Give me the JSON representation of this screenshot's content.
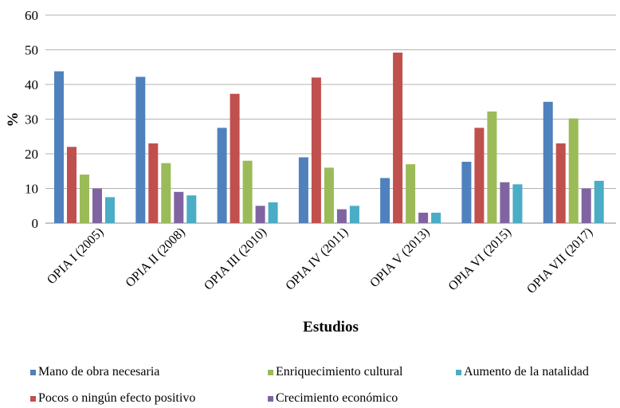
{
  "chart_data": {
    "type": "bar",
    "title": "",
    "xlabel": "Estudios",
    "ylabel": "%",
    "ylim": [
      0,
      60
    ],
    "yticks": [
      0,
      10,
      20,
      30,
      40,
      50,
      60
    ],
    "grid": true,
    "legend_position": "bottom",
    "categories": [
      "OPIA I (2005)",
      "OPIA II (2008)",
      "OPIA III (2010)",
      "OPIA IV (2011)",
      "OPIA V (2013)",
      "OPIA VI (2015)",
      "OPIA VII (2017)"
    ],
    "series": [
      {
        "name": "Mano de obra necesaria",
        "color": "#4F81BD",
        "values": [
          43.8,
          42.2,
          27.5,
          19.0,
          13.0,
          17.7,
          35.0
        ]
      },
      {
        "name": "Pocos o ningún efecto positivo",
        "color": "#C0504D",
        "values": [
          22.0,
          23.0,
          37.3,
          42.0,
          49.2,
          27.5,
          23.0
        ]
      },
      {
        "name": "Enriquecimiento cultural",
        "color": "#9BBB59",
        "values": [
          14.0,
          17.3,
          18.0,
          16.0,
          17.0,
          32.2,
          30.2
        ]
      },
      {
        "name": "Crecimiento económico",
        "color": "#8064A2",
        "values": [
          10.0,
          9.0,
          5.0,
          4.0,
          3.0,
          11.8,
          10.0
        ]
      },
      {
        "name": "Aumento de la natalidad",
        "color": "#4BACC6",
        "values": [
          7.5,
          8.0,
          6.0,
          5.0,
          3.0,
          11.2,
          12.2
        ]
      }
    ]
  }
}
